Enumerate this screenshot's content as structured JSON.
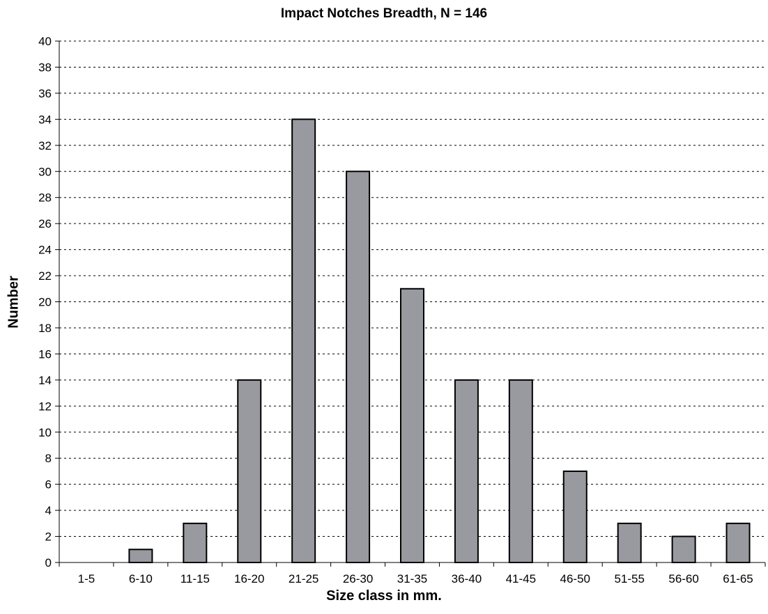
{
  "chart_data": {
    "type": "bar",
    "title": "Impact Notches Breadth, N = 146",
    "xlabel": "Size class in mm.",
    "ylabel": "Number",
    "categories": [
      "1-5",
      "6-10",
      "11-15",
      "16-20",
      "21-25",
      "26-30",
      "31-35",
      "36-40",
      "41-45",
      "46-50",
      "51-55",
      "56-60",
      "61-65"
    ],
    "values": [
      0,
      1,
      3,
      14,
      34,
      30,
      21,
      14,
      14,
      7,
      3,
      2,
      3
    ],
    "ylim": [
      0,
      40
    ],
    "yticks": [
      0,
      2,
      4,
      6,
      8,
      10,
      12,
      14,
      16,
      18,
      20,
      22,
      24,
      26,
      28,
      30,
      32,
      34,
      36,
      38,
      40
    ],
    "grid": "horizontal dotted",
    "bar_color": "#999aa0"
  }
}
